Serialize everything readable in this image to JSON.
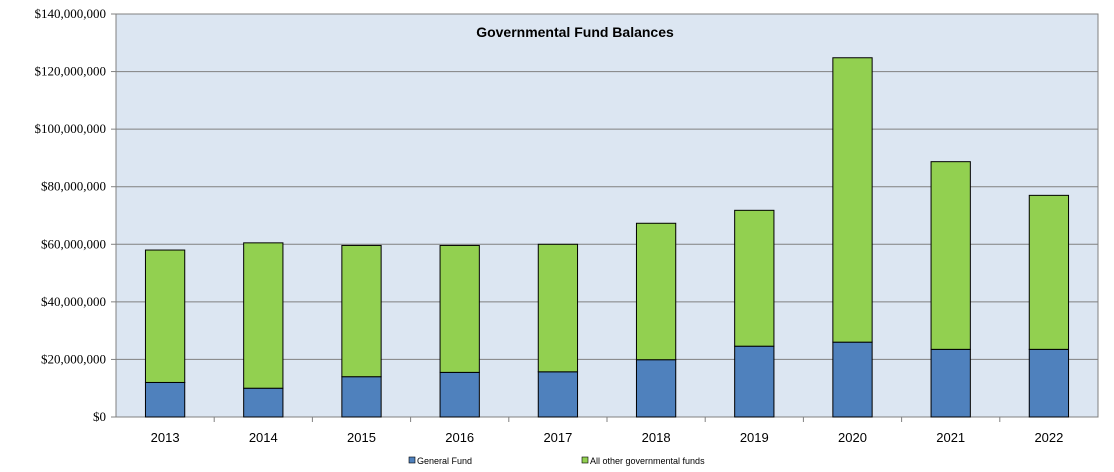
{
  "chart_data": {
    "type": "bar",
    "stacked": true,
    "title": "Governmental Fund Balances",
    "xlabel": "",
    "ylabel": "",
    "categories": [
      "2013",
      "2014",
      "2015",
      "2016",
      "2017",
      "2018",
      "2019",
      "2020",
      "2021",
      "2022"
    ],
    "series": [
      {
        "name": "General Fund",
        "color": "#4f81bd",
        "values": [
          12000000,
          10000000,
          14000000,
          15500000,
          15700000,
          19900000,
          24600000,
          26000000,
          23500000,
          23500000
        ]
      },
      {
        "name": "All other governmental funds",
        "color": "#92d050",
        "values": [
          46000000,
          50500000,
          45600000,
          44100000,
          44300000,
          47400000,
          47200000,
          98800000,
          65200000,
          53500000
        ]
      }
    ],
    "ylim": [
      0,
      140000000
    ],
    "yticks": [
      0,
      20000000,
      40000000,
      60000000,
      80000000,
      100000000,
      120000000,
      140000000
    ],
    "ytick_labels": [
      "$0",
      "$20,000,000",
      "$40,000,000",
      "$60,000,000",
      "$80,000,000",
      "$100,000,000",
      "$120,000,000",
      "$140,000,000"
    ],
    "grid": true,
    "plot_background": "#dce6f2",
    "legend_position": "bottom"
  }
}
